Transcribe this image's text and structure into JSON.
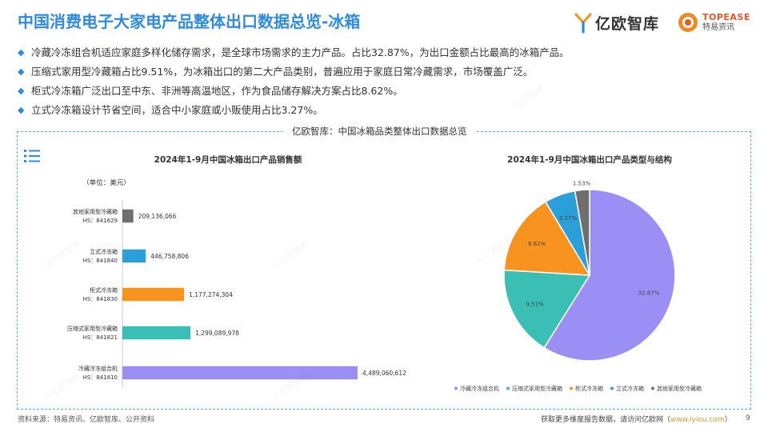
{
  "page": {
    "title": "中国消费电子大家电产品整体出口数据总览-冰箱",
    "bullets": [
      "冷藏冷冻组合机适应家庭多样化储存需求，是全球市场需求的主力产品。占比32.87%，为出口金额占比最高的冰箱产品。",
      "压缩式家用型冷藏箱占比9.51%，为冰箱出口的第二大产品类别，普遍应用于家庭日常冷藏需求，市场覆盖广泛。",
      "柜式冷冻箱广泛出口至中东、非洲等高温地区，作为食品储存解决方案占比8.62%。",
      "立式冷冻箱设计节省空间，适合中小家庭或小贩使用占比3.27%。"
    ],
    "panel_title": "亿欧智库：中国冰箱品类整体出口数据总览",
    "bullet_icon": "diamond-icon",
    "list_icon": "list-icon"
  },
  "logos": {
    "yiou": "亿欧智库",
    "topease_en": "TOPEASE",
    "topease_cn": "特易资讯"
  },
  "footer": {
    "source": "资料来源：特易资讯、亿欧智库、公开资料",
    "more_prefix": "获取更多维度报告数据，请访问亿欧网（",
    "link": "www.iyiou.com",
    "more_suffix": "）",
    "page_number": "9"
  },
  "chart_data": [
    {
      "type": "bar",
      "orientation": "horizontal",
      "title": "2024年1-9月中国冰箱出口产品销售额",
      "unit_label": "（单位：美元）",
      "categories": [
        {
          "name": "其他家用型冷藏箱",
          "hs": "HS：841629"
        },
        {
          "name": "立式冷冻箱",
          "hs": "HS：841840"
        },
        {
          "name": "柜式冷冻箱",
          "hs": "HS：841830"
        },
        {
          "name": "压缩式家用型冷藏箱",
          "hs": "HS：841821"
        },
        {
          "name": "冷藏冷冻组合机",
          "hs": "HS：841810"
        }
      ],
      "values": [
        209136066,
        446758806,
        1177274304,
        1299089978,
        4489060612
      ],
      "value_labels": [
        "209,136,066",
        "446,758,806",
        "1,177,274,304",
        "1,299,089,978",
        "4,489,060,612"
      ],
      "colors": [
        "#6f6f6f",
        "#2a9fd8",
        "#f7931e",
        "#3bbfb5",
        "#9b8ff5"
      ],
      "xlim": [
        0,
        4489060612
      ]
    },
    {
      "type": "pie",
      "title": "2024年1-9月中国冰箱出口产品类型与结构",
      "labels": [
        "冷藏冷冻组合机",
        "压缩式家用型冷藏箱",
        "柜式冷冻箱",
        "立式冷冻箱",
        "其他家用型冷藏箱"
      ],
      "values": [
        32.87,
        9.51,
        8.62,
        3.27,
        1.53
      ],
      "value_labels": [
        "32.87%",
        "9.51%",
        "8.62%",
        "3.27%",
        "1.53%"
      ],
      "colors": [
        "#9b8ff5",
        "#3bbfb5",
        "#f7931e",
        "#2a9fd8",
        "#6f6f6f"
      ],
      "legend_position": "bottom"
    }
  ]
}
